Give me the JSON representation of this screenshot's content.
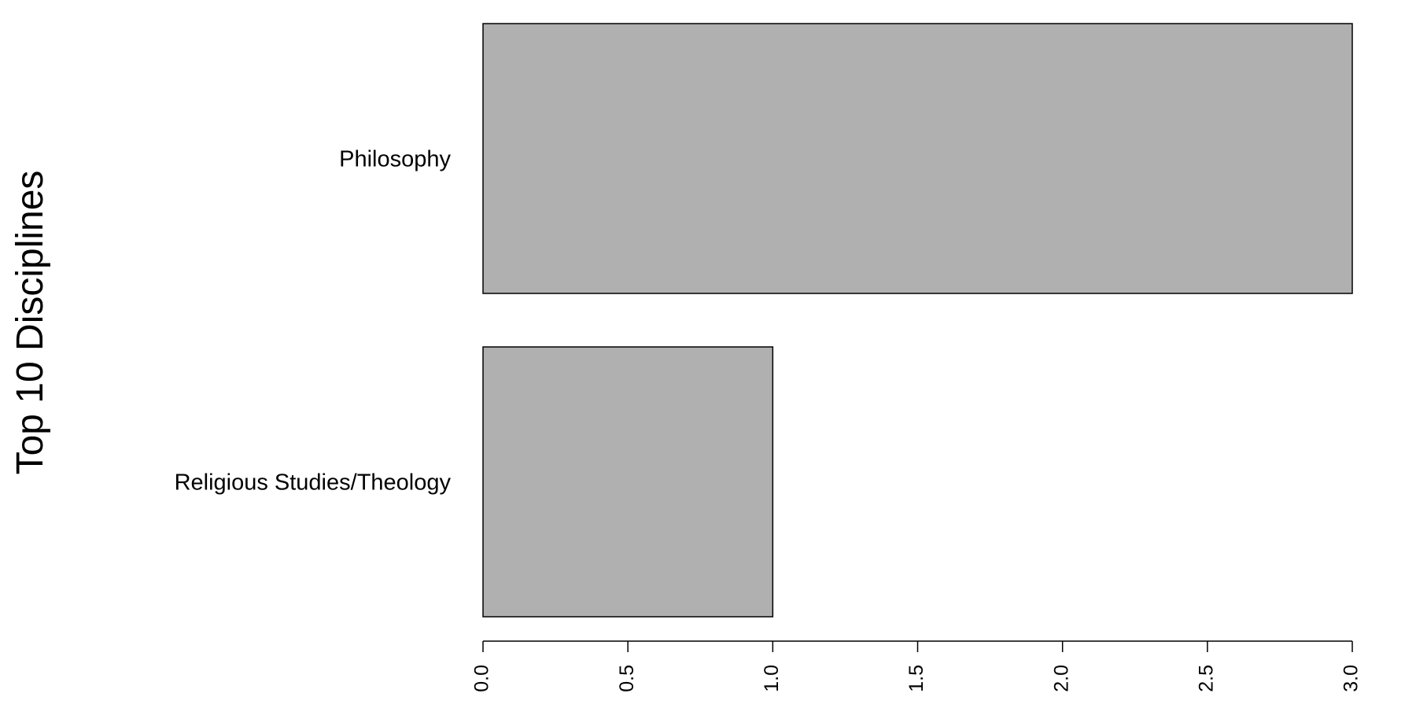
{
  "chart_data": {
    "type": "bar",
    "orientation": "horizontal",
    "categories": [
      "Philosophy",
      "Religious Studies/Theology"
    ],
    "values": [
      3,
      1
    ],
    "title": "",
    "xlabel": "",
    "ylabel": "Top 10 Disciplines",
    "xlim": [
      0,
      3
    ],
    "xticks": [
      "0.0",
      "0.5",
      "1.0",
      "1.5",
      "2.0",
      "2.5",
      "3.0"
    ],
    "grid": false,
    "bar_color": "#b0b0b0",
    "bar_border_color": "#000000"
  }
}
